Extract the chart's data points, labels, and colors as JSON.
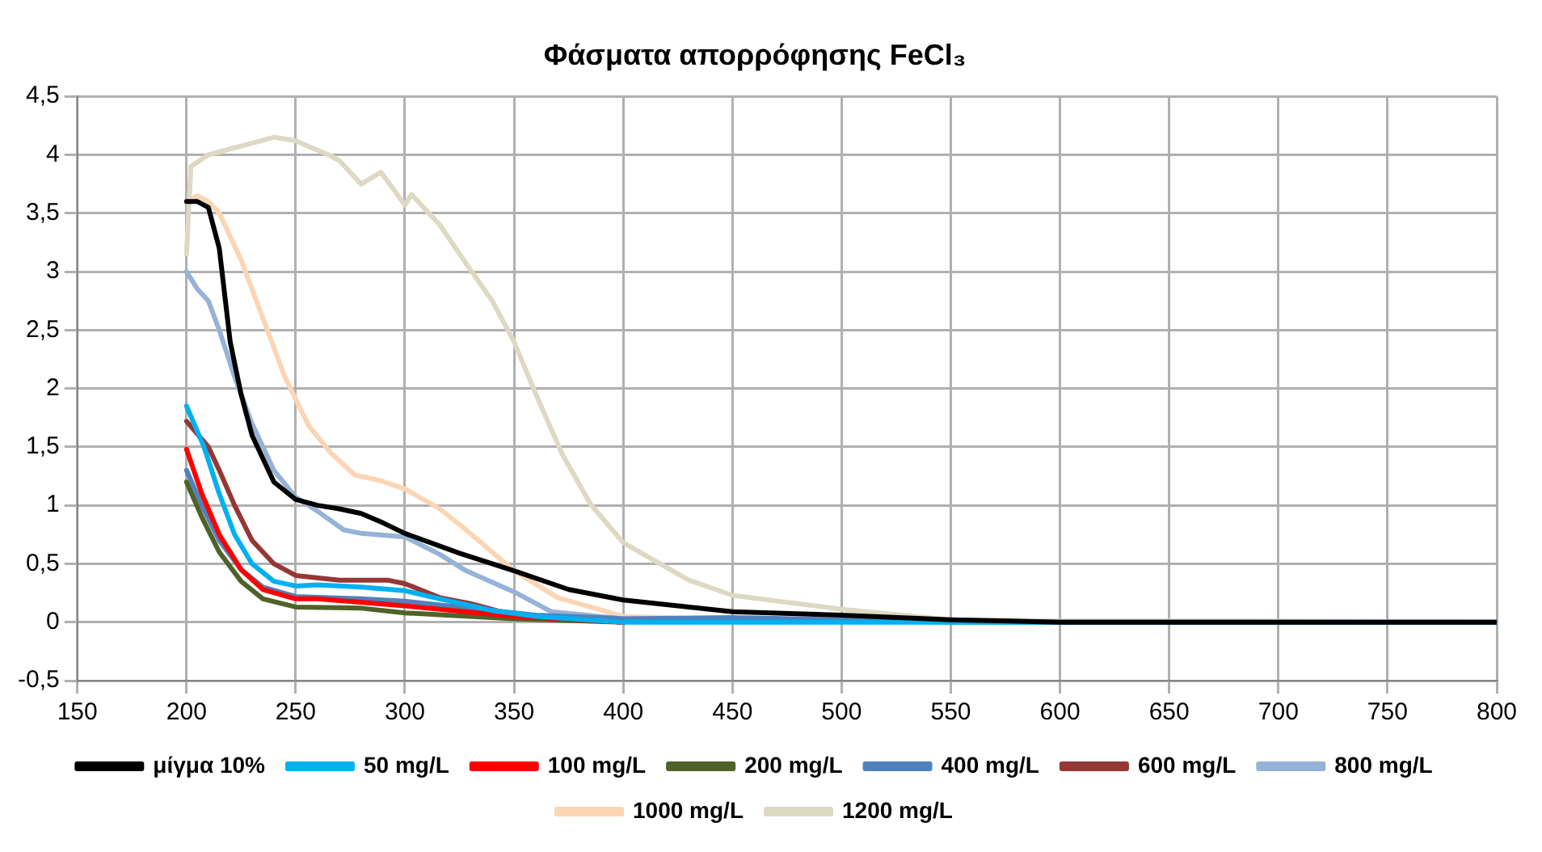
{
  "chart_data": {
    "type": "line",
    "title": "Φάσματα απορρόφησης FeCl₃",
    "xlim": [
      150,
      800
    ],
    "xticks": [
      150,
      200,
      250,
      300,
      350,
      400,
      450,
      500,
      550,
      600,
      650,
      700,
      750,
      800
    ],
    "ylim": [
      -0.5,
      4.5
    ],
    "yticks": [
      {
        "value": -0.5,
        "label": "-0,5"
      },
      0,
      {
        "value": 0.5,
        "label": "0,5"
      },
      1,
      {
        "value": 1.5,
        "label": "1,5"
      },
      2,
      {
        "value": 2.5,
        "label": "2,5"
      },
      3,
      {
        "value": 3.5,
        "label": "3,5"
      },
      4,
      {
        "value": 4.5,
        "label": "4,5"
      }
    ],
    "grid": true,
    "legend": "bottom",
    "marker": "none",
    "line_style": "solid",
    "series": [
      {
        "name": "μίγμα 10%",
        "color": "#000000",
        "x": [
          200,
          205,
          210,
          215,
          220,
          225,
          230,
          240,
          250,
          260,
          270,
          280,
          290,
          300,
          325,
          350,
          375,
          400,
          450,
          500,
          550,
          600,
          700,
          800
        ],
        "values": [
          3.6,
          3.6,
          3.55,
          3.2,
          2.4,
          1.95,
          1.6,
          1.2,
          1.05,
          1.0,
          0.97,
          0.93,
          0.85,
          0.76,
          0.59,
          0.44,
          0.28,
          0.19,
          0.09,
          0.06,
          0.02,
          0,
          0,
          0
        ]
      },
      {
        "name": "50 mg/L",
        "color": "#00b0f0",
        "x": [
          200,
          208,
          215,
          222,
          230,
          240,
          250,
          260,
          280,
          300,
          316,
          340,
          360,
          400,
          500,
          800
        ],
        "values": [
          1.85,
          1.5,
          1.1,
          0.75,
          0.5,
          0.35,
          0.31,
          0.32,
          0.3,
          0.27,
          0.2,
          0.1,
          0.05,
          0,
          0,
          0
        ]
      },
      {
        "name": "100 mg/L",
        "color": "#ff0000",
        "x": [
          200,
          207,
          215,
          225,
          235,
          250,
          260,
          300,
          350,
          380,
          400
        ],
        "values": [
          1.48,
          1.1,
          0.75,
          0.45,
          0.28,
          0.2,
          0.2,
          0.14,
          0.05,
          0.02,
          0
        ]
      },
      {
        "name": "200 mg/L",
        "color": "#4f6228",
        "x": [
          200,
          207,
          215,
          225,
          235,
          250,
          280,
          300,
          350,
          400
        ],
        "values": [
          1.2,
          0.9,
          0.6,
          0.35,
          0.2,
          0.13,
          0.12,
          0.08,
          0.03,
          0
        ]
      },
      {
        "name": "400 mg/L",
        "color": "#4f81bd",
        "x": [
          200,
          207,
          215,
          225,
          235,
          250,
          280,
          300,
          330,
          360,
          400,
          450,
          500,
          550,
          800
        ],
        "values": [
          1.3,
          1.0,
          0.7,
          0.45,
          0.3,
          0.22,
          0.2,
          0.18,
          0.12,
          0.06,
          0.03,
          0.04,
          0.02,
          0,
          0
        ]
      },
      {
        "name": "600 mg/L",
        "color": "#953735",
        "x": [
          200,
          210,
          215,
          222,
          230,
          240,
          250,
          270,
          292,
          300,
          316,
          330,
          350,
          400
        ],
        "values": [
          1.72,
          1.5,
          1.3,
          1.0,
          0.7,
          0.5,
          0.4,
          0.36,
          0.36,
          0.33,
          0.21,
          0.16,
          0.06,
          0
        ]
      },
      {
        "name": "800 mg/L",
        "color": "#95b3d7",
        "x": [
          200,
          205,
          210,
          215,
          222,
          230,
          240,
          250,
          260,
          272,
          280,
          300,
          316,
          328,
          350,
          367,
          400,
          450
        ],
        "values": [
          3.0,
          2.85,
          2.75,
          2.5,
          2.1,
          1.7,
          1.3,
          1.07,
          0.95,
          0.79,
          0.76,
          0.73,
          0.58,
          0.44,
          0.26,
          0.09,
          0.03,
          0.01
        ]
      },
      {
        "name": "1000 mg/L",
        "color": "#fcd5b5",
        "x": [
          200,
          205,
          210,
          215,
          225,
          235,
          245,
          256,
          266,
          277,
          289,
          300,
          316,
          328,
          350,
          370,
          400,
          450
        ],
        "values": [
          3.6,
          3.65,
          3.6,
          3.5,
          3.1,
          2.6,
          2.1,
          1.68,
          1.45,
          1.26,
          1.21,
          1.14,
          0.97,
          0.79,
          0.44,
          0.21,
          0.05,
          0.02
        ]
      },
      {
        "name": "1200 mg/L",
        "color": "#ddd9c3",
        "x": [
          200,
          202,
          210,
          220,
          230,
          240,
          250,
          256,
          265,
          270,
          280,
          289,
          295,
          300,
          303,
          316,
          328,
          340,
          350,
          360,
          372,
          385,
          400,
          430,
          450,
          500,
          550,
          600,
          690,
          800
        ],
        "values": [
          3.15,
          3.9,
          4.0,
          4.05,
          4.1,
          4.15,
          4.12,
          4.07,
          4.0,
          3.95,
          3.75,
          3.85,
          3.7,
          3.57,
          3.66,
          3.4,
          3.07,
          2.75,
          2.4,
          1.95,
          1.44,
          1.01,
          0.68,
          0.36,
          0.23,
          0.11,
          0.02,
          0.01,
          0.01,
          0
        ]
      }
    ]
  }
}
